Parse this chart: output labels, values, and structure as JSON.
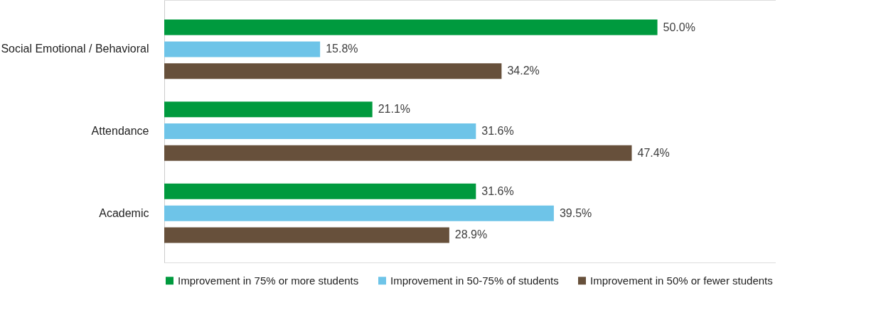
{
  "chart_data": {
    "type": "bar",
    "orientation": "horizontal",
    "categories": [
      "Social Emotional / Behavioral",
      "Attendance",
      "Academic"
    ],
    "series": [
      {
        "name": "Improvement in 75% or more students",
        "color": "#009a3e",
        "values": [
          50.0,
          21.1,
          31.6
        ],
        "value_labels": [
          "50.0%",
          "21.1%",
          "31.6%"
        ]
      },
      {
        "name": "Improvement in 50-75% of students",
        "color": "#6ec4e8",
        "values": [
          15.8,
          31.6,
          39.5
        ],
        "value_labels": [
          "15.8%",
          "31.6%",
          "39.5%"
        ]
      },
      {
        "name": "Improvement in 50% or fewer students",
        "color": "#67503b",
        "values": [
          34.2,
          47.4,
          28.9
        ],
        "value_labels": [
          "34.2%",
          "47.4%",
          "28.9%"
        ]
      }
    ],
    "legend": "bottom"
  }
}
